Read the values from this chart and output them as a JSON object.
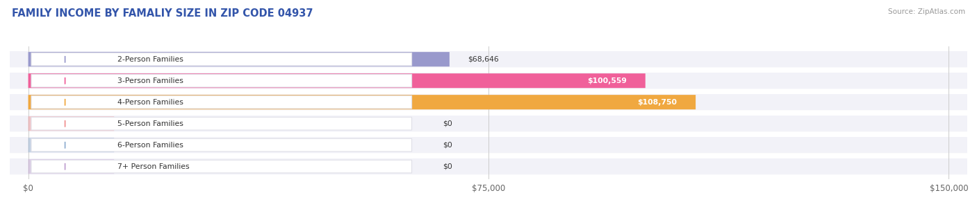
{
  "title": "FAMILY INCOME BY FAMALIY SIZE IN ZIP CODE 04937",
  "source": "Source: ZipAtlas.com",
  "categories": [
    "2-Person Families",
    "3-Person Families",
    "4-Person Families",
    "5-Person Families",
    "6-Person Families",
    "7+ Person Families"
  ],
  "values": [
    68646,
    100559,
    108750,
    0,
    0,
    0
  ],
  "bar_colors": [
    "#9999cc",
    "#f0609a",
    "#f0a840",
    "#f09090",
    "#90aed0",
    "#c0a0d0"
  ],
  "bar_bg_colors": [
    "#ebebf5",
    "#f5eaf0",
    "#f5f0e8",
    "#f5eded",
    "#edeef5",
    "#f0ecf5"
  ],
  "xlim": [
    0,
    150000
  ],
  "xticks": [
    0,
    75000,
    150000
  ],
  "xticklabels": [
    "$0",
    "$75,000",
    "$150,000"
  ],
  "title_color": "#3355aa",
  "source_color": "#999999",
  "title_fontsize": 10.5,
  "bar_height": 0.68,
  "value_labels": [
    "$68,646",
    "$100,559",
    "$108,750",
    "$0",
    "$0",
    "$0"
  ],
  "value_label_inside": [
    false,
    true,
    true,
    false,
    false,
    false
  ],
  "background_color": "#ffffff",
  "row_bg_color": "#f2f2f8",
  "label_pill_color": "#ffffff",
  "label_pill_edge": "#e0e0e8"
}
